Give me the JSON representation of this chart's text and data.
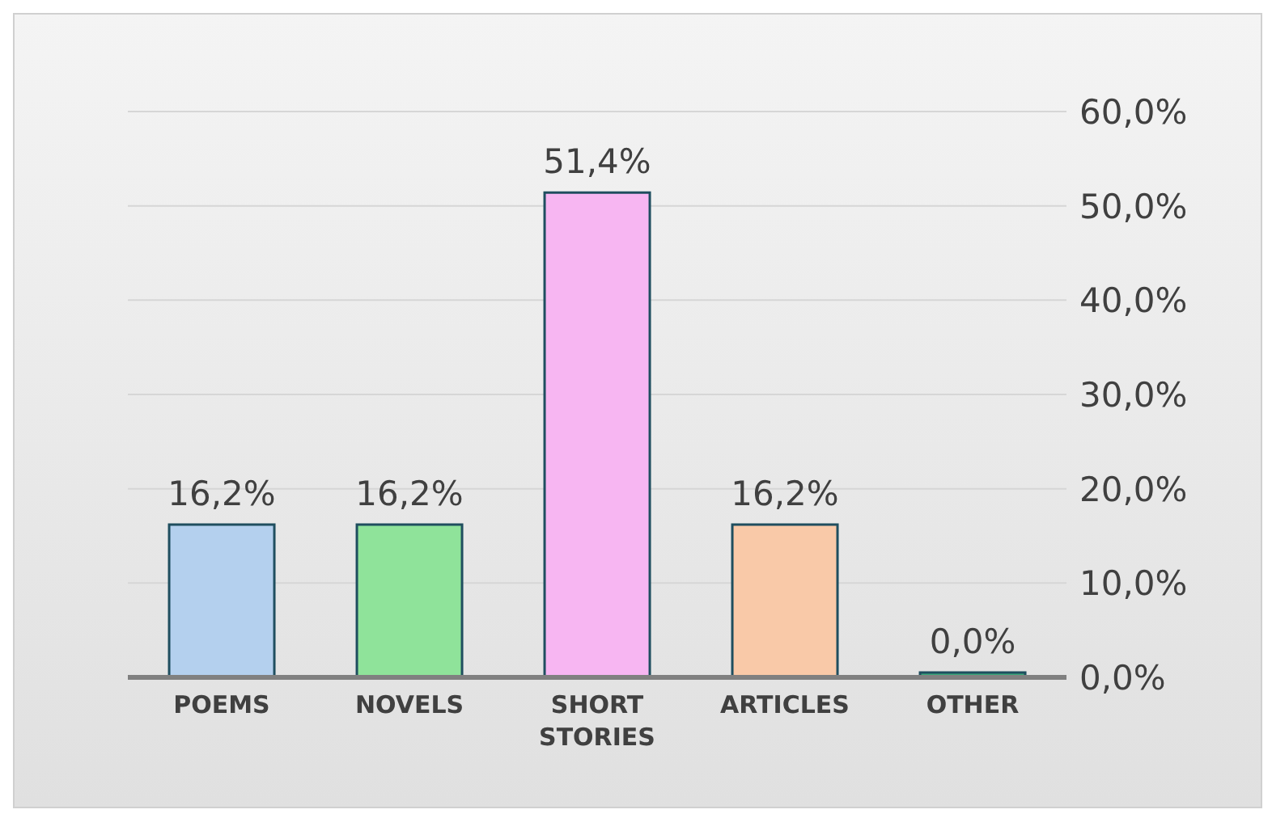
{
  "chart_data": {
    "type": "bar",
    "categories": [
      "POEMS",
      "NOVELS",
      "SHORT STORIES",
      "ARTICLES",
      "OTHER"
    ],
    "values": [
      16.2,
      16.2,
      51.4,
      16.2,
      0.0
    ],
    "colors": [
      "#b4d0ee",
      "#8fe39a",
      "#f7b6f2",
      "#f9c9a8",
      "#3aa57a"
    ],
    "value_labels": [
      "16,2%",
      "16,2%",
      "51,4%",
      "16,2%",
      "0,0%"
    ],
    "ylim": [
      0,
      60
    ],
    "yticks": [
      {
        "value": 0,
        "label": "0,0%"
      },
      {
        "value": 10,
        "label": "10,0%"
      },
      {
        "value": 20,
        "label": "20,0%"
      },
      {
        "value": 30,
        "label": "30,0%"
      },
      {
        "value": 40,
        "label": "40,0%"
      },
      {
        "value": 50,
        "label": "50,0%"
      },
      {
        "value": 60,
        "label": "60,0%"
      }
    ],
    "grid": "y"
  }
}
